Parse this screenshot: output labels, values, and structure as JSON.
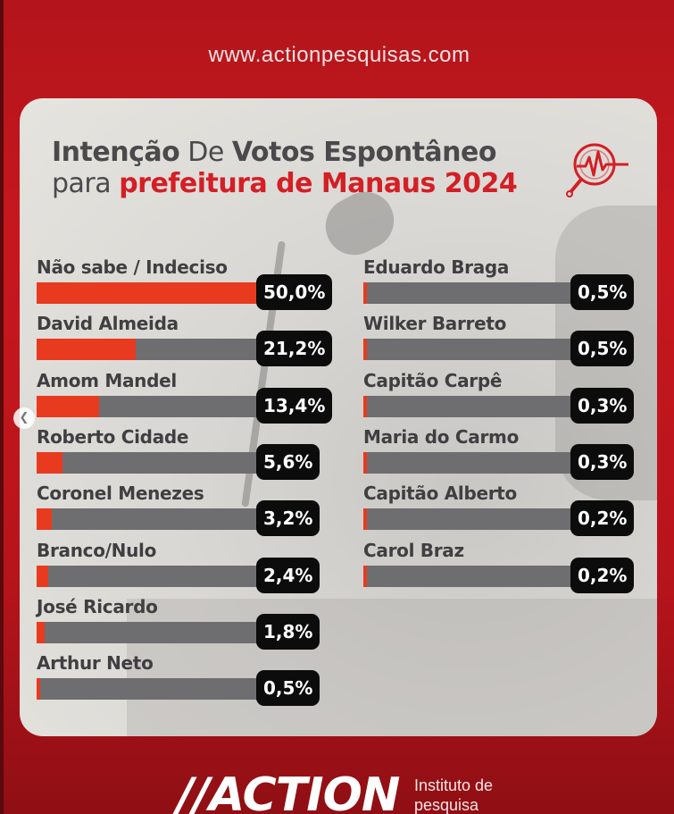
{
  "website": "www.actionpesquisas.com",
  "title": {
    "line1_a": "Intenção",
    "line1_b": " De ",
    "line1_c": "Votos Espontâneo",
    "line2_a": "para ",
    "line2_b": "prefeitura de Manaus 2024"
  },
  "colors": {
    "accent": "#d31f25",
    "bar_fill": "#e83a1f",
    "bar_track": "#6e6e70",
    "badge": "#0c0c0c"
  },
  "icons": {
    "brand": "pulse-magnifier-icon",
    "carousel": "chevron-left-icon"
  },
  "chart_data": {
    "type": "bar",
    "orientation": "horizontal",
    "ylim": [
      0,
      100
    ],
    "items": [
      {
        "name": "Não sabe / Indeciso",
        "value": 50.0,
        "label": "50,0%"
      },
      {
        "name": "David Almeida",
        "value": 21.2,
        "label": "21,2%"
      },
      {
        "name": "Amom Mandel",
        "value": 13.4,
        "label": "13,4%"
      },
      {
        "name": "Roberto Cidade",
        "value": 5.6,
        "label": "5,6%"
      },
      {
        "name": "Coronel Menezes",
        "value": 3.2,
        "label": "3,2%"
      },
      {
        "name": "Branco/Nulo",
        "value": 2.4,
        "label": "2,4%"
      },
      {
        "name": "José Ricardo",
        "value": 1.8,
        "label": "1,8%"
      },
      {
        "name": "Arthur Neto",
        "value": 0.5,
        "label": "0,5%"
      },
      {
        "name": "Eduardo Braga",
        "value": 0.5,
        "label": "0,5%"
      },
      {
        "name": "Wilker Barreto",
        "value": 0.5,
        "label": "0,5%"
      },
      {
        "name": "Capitão Carpê",
        "value": 0.3,
        "label": "0,3%"
      },
      {
        "name": "Maria do Carmo",
        "value": 0.3,
        "label": "0,3%"
      },
      {
        "name": "Capitão Alberto",
        "value": 0.2,
        "label": "0,2%"
      },
      {
        "name": "Carol Braz",
        "value": 0.2,
        "label": "0,2%"
      }
    ]
  },
  "footer": {
    "brand": "//ACTION",
    "tagline_1": "Instituto de",
    "tagline_2": "pesquisa"
  }
}
